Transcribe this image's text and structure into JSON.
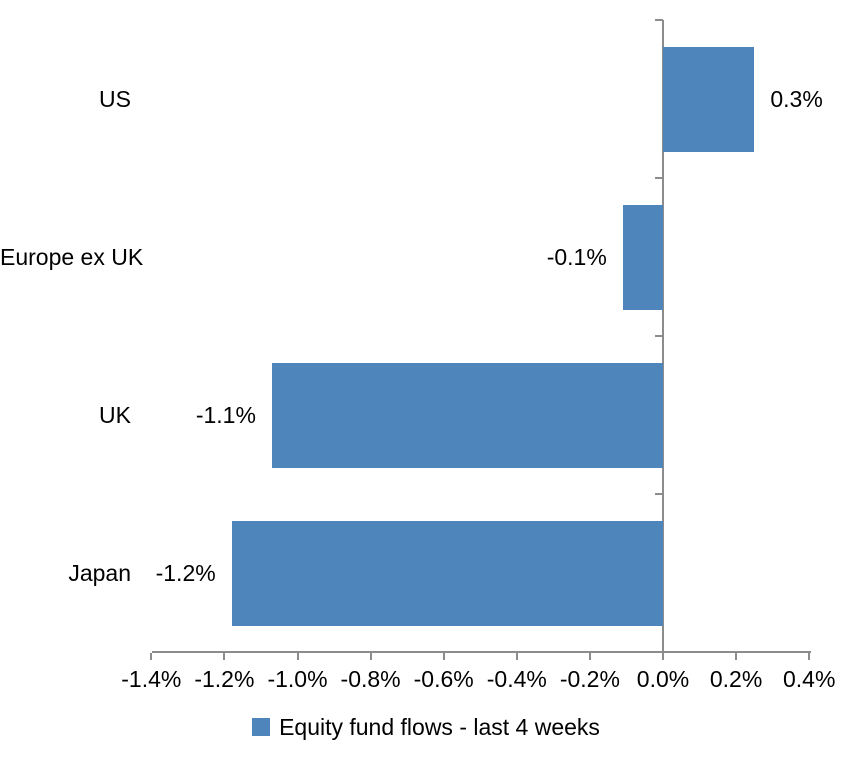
{
  "chart_data": {
    "type": "bar",
    "orientation": "horizontal",
    "title": "",
    "categories": [
      "US",
      "Europe ex UK",
      "UK",
      "Japan"
    ],
    "values": [
      0.3,
      -0.1,
      -1.1,
      -1.2
    ],
    "values_precise": [
      0.25,
      -0.11,
      -1.07,
      -1.18
    ],
    "data_labels": [
      "0.3%",
      "-0.1%",
      "-1.1%",
      "-1.2%"
    ],
    "unit": "%",
    "x_ticks": [
      {
        "value": -1.4,
        "label": "-1.4%"
      },
      {
        "value": -1.2,
        "label": "-1.2%"
      },
      {
        "value": -1.0,
        "label": "-1.0%"
      },
      {
        "value": -0.8,
        "label": "-0.8%"
      },
      {
        "value": -0.6,
        "label": "-0.6%"
      },
      {
        "value": -0.4,
        "label": "-0.4%"
      },
      {
        "value": -0.2,
        "label": "-0.2%"
      },
      {
        "value": 0.0,
        "label": "0.0%"
      },
      {
        "value": 0.2,
        "label": "0.2%"
      },
      {
        "value": 0.4,
        "label": "0.4%"
      }
    ],
    "xlim": [
      -1.4,
      0.4
    ],
    "grid": false,
    "legend_position": "bottom",
    "legend": [
      {
        "label": "Equity fund flows - last 4 weeks",
        "color": "#4e86bc"
      }
    ],
    "colors": {
      "bar": "#4e86bc",
      "axis": "#8c8c8c",
      "text": "#000000",
      "background": "#ffffff"
    }
  }
}
